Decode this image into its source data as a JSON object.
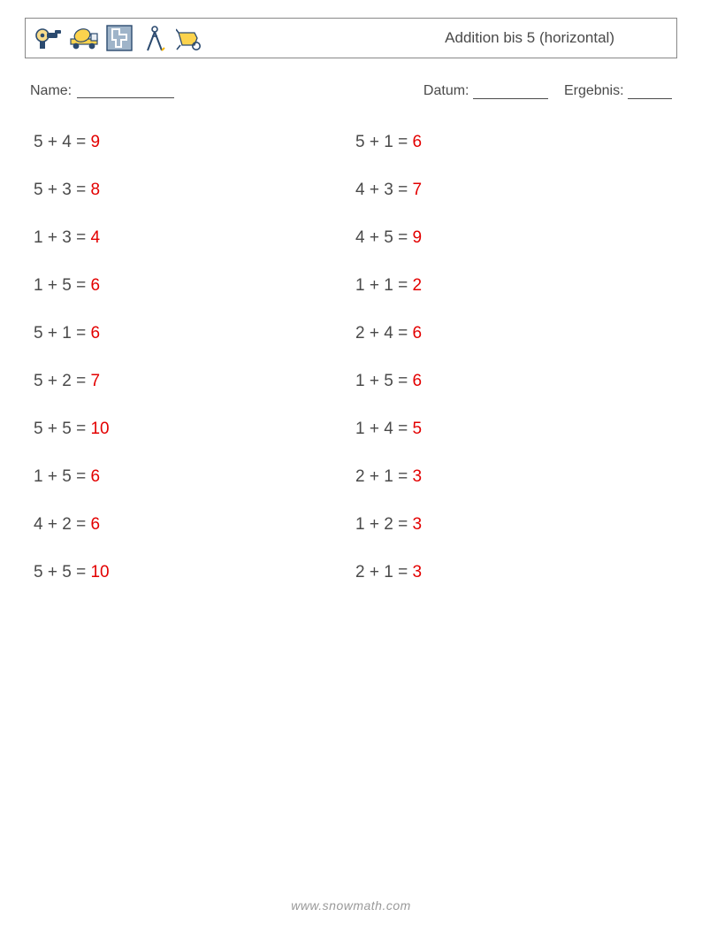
{
  "colors": {
    "text": "#4a4a4a",
    "answer": "#e30000",
    "border": "#888888",
    "footer_text": "#999999",
    "background": "#ffffff"
  },
  "header": {
    "title": "Addition bis 5 (horizontal)",
    "icons": [
      "grinder-icon",
      "cement-truck-icon",
      "blueprint-icon",
      "compass-icon",
      "wheelbarrow-icon"
    ]
  },
  "info_labels": {
    "name": "Name:",
    "date": "Datum:",
    "result": "Ergebnis:"
  },
  "worksheet": {
    "columns": 2,
    "rows": 10,
    "question_fontsize": 19,
    "row_gap": 32,
    "problems_left": [
      {
        "a": 5,
        "b": 4,
        "ans": 9
      },
      {
        "a": 5,
        "b": 3,
        "ans": 8
      },
      {
        "a": 1,
        "b": 3,
        "ans": 4
      },
      {
        "a": 1,
        "b": 5,
        "ans": 6
      },
      {
        "a": 5,
        "b": 1,
        "ans": 6
      },
      {
        "a": 5,
        "b": 2,
        "ans": 7
      },
      {
        "a": 5,
        "b": 5,
        "ans": 10
      },
      {
        "a": 1,
        "b": 5,
        "ans": 6
      },
      {
        "a": 4,
        "b": 2,
        "ans": 6
      },
      {
        "a": 5,
        "b": 5,
        "ans": 10
      }
    ],
    "problems_right": [
      {
        "a": 5,
        "b": 1,
        "ans": 6
      },
      {
        "a": 4,
        "b": 3,
        "ans": 7
      },
      {
        "a": 4,
        "b": 5,
        "ans": 9
      },
      {
        "a": 1,
        "b": 1,
        "ans": 2
      },
      {
        "a": 2,
        "b": 4,
        "ans": 6
      },
      {
        "a": 1,
        "b": 5,
        "ans": 6
      },
      {
        "a": 1,
        "b": 4,
        "ans": 5
      },
      {
        "a": 2,
        "b": 1,
        "ans": 3
      },
      {
        "a": 1,
        "b": 2,
        "ans": 3
      },
      {
        "a": 2,
        "b": 1,
        "ans": 3
      }
    ]
  },
  "footer": {
    "text": "www.snowmath.com"
  }
}
